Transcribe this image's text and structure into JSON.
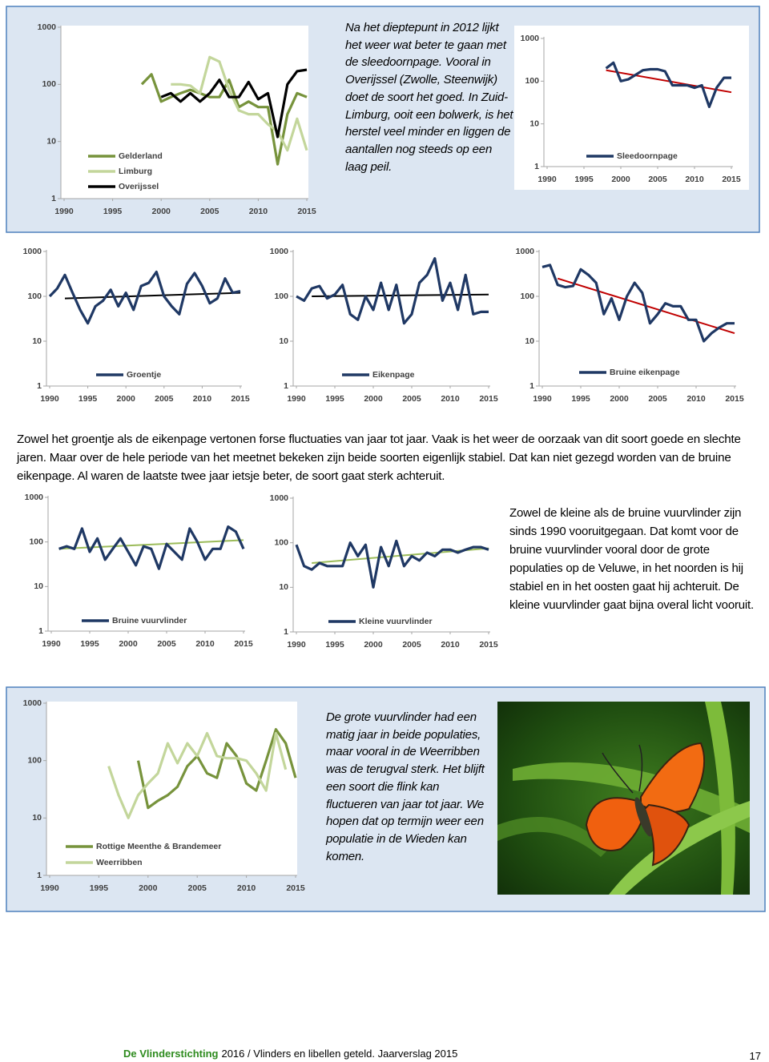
{
  "chart_data": [
    {
      "type": "line",
      "log_scale": true,
      "xlim": [
        1990,
        2015
      ],
      "ylim": [
        1,
        1000
      ],
      "xticks": [
        1990,
        1995,
        2000,
        2005,
        2010,
        2015
      ],
      "yticks": [
        1,
        10,
        100,
        1000
      ],
      "x": [
        1990,
        1991,
        1992,
        1993,
        1994,
        1995,
        1996,
        1997,
        1998,
        1999,
        2000,
        2001,
        2002,
        2003,
        2004,
        2005,
        2006,
        2007,
        2008,
        2009,
        2010,
        2011,
        2012,
        2013,
        2014,
        2015
      ],
      "series": [
        {
          "name": "Gelderland",
          "color": "#77933c",
          "values": [
            null,
            null,
            null,
            null,
            null,
            null,
            null,
            null,
            100,
            150,
            50,
            60,
            70,
            80,
            70,
            60,
            60,
            120,
            40,
            50,
            40,
            40,
            4,
            30,
            70,
            60
          ]
        },
        {
          "name": "Limburg",
          "color": "#c3d69b",
          "values": [
            null,
            null,
            null,
            null,
            null,
            null,
            null,
            null,
            null,
            null,
            null,
            100,
            100,
            95,
            70,
            300,
            250,
            80,
            35,
            30,
            30,
            20,
            15,
            7,
            25,
            7
          ]
        },
        {
          "name": "Overijssel",
          "color": "#000000",
          "values": [
            null,
            null,
            null,
            null,
            null,
            null,
            null,
            null,
            null,
            null,
            60,
            70,
            50,
            70,
            50,
            70,
            120,
            60,
            60,
            110,
            55,
            70,
            12,
            100,
            170,
            180
          ]
        }
      ]
    },
    {
      "type": "line",
      "log_scale": true,
      "xlim": [
        1990,
        2015
      ],
      "ylim": [
        1,
        1000
      ],
      "xticks": [
        1990,
        1995,
        2000,
        2005,
        2010,
        2015
      ],
      "yticks": [
        1,
        10,
        100,
        1000
      ],
      "x": [
        1990,
        1991,
        1992,
        1993,
        1994,
        1995,
        1996,
        1997,
        1998,
        1999,
        2000,
        2001,
        2002,
        2003,
        2004,
        2005,
        2006,
        2007,
        2008,
        2009,
        2010,
        2011,
        2012,
        2013,
        2014,
        2015
      ],
      "series": [
        {
          "name": "Sleedoornpage",
          "color": "#1f3864",
          "values": [
            null,
            null,
            null,
            null,
            null,
            null,
            null,
            null,
            200,
            270,
            100,
            110,
            140,
            180,
            190,
            190,
            170,
            80,
            80,
            80,
            70,
            80,
            25,
            70,
            120,
            120
          ]
        }
      ],
      "trend": {
        "x": [
          1998,
          2015
        ],
        "values": [
          180,
          55
        ],
        "color": "#c00000"
      }
    },
    {
      "type": "line",
      "log_scale": true,
      "xlim": [
        1990,
        2015
      ],
      "ylim": [
        1,
        1000
      ],
      "xticks": [
        1990,
        1995,
        2000,
        2005,
        2010,
        2015
      ],
      "yticks": [
        1,
        10,
        100,
        1000
      ],
      "x": [
        1990,
        1991,
        1992,
        1993,
        1994,
        1995,
        1996,
        1997,
        1998,
        1999,
        2000,
        2001,
        2002,
        2003,
        2004,
        2005,
        2006,
        2007,
        2008,
        2009,
        2010,
        2011,
        2012,
        2013,
        2014,
        2015
      ],
      "series": [
        {
          "name": "Groentje",
          "color": "#1f3864",
          "values": [
            100,
            150,
            300,
            120,
            50,
            25,
            60,
            80,
            140,
            60,
            120,
            50,
            170,
            200,
            350,
            100,
            60,
            40,
            190,
            330,
            170,
            70,
            90,
            250,
            120,
            130
          ]
        }
      ],
      "trend": {
        "x": [
          1992,
          2015
        ],
        "values": [
          90,
          120
        ],
        "color": "#000000"
      }
    },
    {
      "type": "line",
      "log_scale": true,
      "xlim": [
        1990,
        2015
      ],
      "ylim": [
        1,
        1000
      ],
      "xticks": [
        1990,
        1995,
        2000,
        2005,
        2010,
        2015
      ],
      "yticks": [
        1,
        10,
        100,
        1000
      ],
      "x": [
        1990,
        1991,
        1992,
        1993,
        1994,
        1995,
        1996,
        1997,
        1998,
        1999,
        2000,
        2001,
        2002,
        2003,
        2004,
        2005,
        2006,
        2007,
        2008,
        2009,
        2010,
        2011,
        2012,
        2013,
        2014,
        2015
      ],
      "series": [
        {
          "name": "Eikenpage",
          "color": "#1f3864",
          "values": [
            100,
            80,
            150,
            170,
            90,
            110,
            180,
            40,
            30,
            100,
            50,
            200,
            50,
            180,
            25,
            40,
            200,
            300,
            700,
            80,
            200,
            50,
            300,
            40,
            45,
            45
          ]
        }
      ],
      "trend": {
        "x": [
          1992,
          2015
        ],
        "values": [
          100,
          110
        ],
        "color": "#000000"
      }
    },
    {
      "type": "line",
      "log_scale": true,
      "xlim": [
        1990,
        2015
      ],
      "ylim": [
        1,
        1000
      ],
      "xticks": [
        1990,
        1995,
        2000,
        2005,
        2010,
        2015
      ],
      "yticks": [
        1,
        10,
        100,
        1000
      ],
      "x": [
        1990,
        1991,
        1992,
        1993,
        1994,
        1995,
        1996,
        1997,
        1998,
        1999,
        2000,
        2001,
        2002,
        2003,
        2004,
        2005,
        2006,
        2007,
        2008,
        2009,
        2010,
        2011,
        2012,
        2013,
        2014,
        2015
      ],
      "series": [
        {
          "name": "Bruine eikenpage",
          "color": "#1f3864",
          "values": [
            450,
            500,
            180,
            160,
            170,
            400,
            300,
            200,
            40,
            90,
            30,
            100,
            200,
            120,
            25,
            40,
            70,
            60,
            60,
            30,
            30,
            10,
            15,
            20,
            25,
            25
          ]
        }
      ],
      "trend": {
        "x": [
          1992,
          2015
        ],
        "values": [
          250,
          15
        ],
        "color": "#c00000"
      }
    },
    {
      "type": "line",
      "log_scale": true,
      "xlim": [
        1990,
        2015
      ],
      "ylim": [
        1,
        1000
      ],
      "xticks": [
        1990,
        1995,
        2000,
        2005,
        2010,
        2015
      ],
      "yticks": [
        1,
        10,
        100,
        1000
      ],
      "x": [
        1990,
        1991,
        1992,
        1993,
        1994,
        1995,
        1996,
        1997,
        1998,
        1999,
        2000,
        2001,
        2002,
        2003,
        2004,
        2005,
        2006,
        2007,
        2008,
        2009,
        2010,
        2011,
        2012,
        2013,
        2014,
        2015
      ],
      "series": [
        {
          "name": "Bruine vuurvlinder",
          "color": "#1f3864",
          "values": [
            null,
            70,
            80,
            70,
            200,
            60,
            120,
            40,
            70,
            120,
            60,
            30,
            80,
            70,
            25,
            90,
            60,
            40,
            200,
            100,
            40,
            70,
            70,
            220,
            170,
            70
          ]
        }
      ],
      "trend": {
        "x": [
          1991,
          2015
        ],
        "values": [
          70,
          110
        ],
        "color": "#9bbb59"
      }
    },
    {
      "type": "line",
      "log_scale": true,
      "xlim": [
        1990,
        2015
      ],
      "ylim": [
        1,
        1000
      ],
      "xticks": [
        1990,
        1995,
        2000,
        2005,
        2010,
        2015
      ],
      "yticks": [
        1,
        10,
        100,
        1000
      ],
      "x": [
        1990,
        1991,
        1992,
        1993,
        1994,
        1995,
        1996,
        1997,
        1998,
        1999,
        2000,
        2001,
        2002,
        2003,
        2004,
        2005,
        2006,
        2007,
        2008,
        2009,
        2010,
        2011,
        2012,
        2013,
        2014,
        2015
      ],
      "series": [
        {
          "name": "Kleine vuurvlinder",
          "color": "#1f3864",
          "values": [
            90,
            30,
            25,
            35,
            30,
            30,
            30,
            100,
            50,
            90,
            10,
            80,
            30,
            110,
            30,
            50,
            40,
            60,
            50,
            70,
            70,
            60,
            70,
            80,
            80,
            70
          ]
        }
      ],
      "trend": {
        "x": [
          1992,
          2015
        ],
        "values": [
          35,
          75
        ],
        "color": "#9bbb59"
      }
    },
    {
      "type": "line",
      "log_scale": true,
      "xlim": [
        1990,
        2015
      ],
      "ylim": [
        1,
        1000
      ],
      "xticks": [
        1990,
        1995,
        2000,
        2005,
        2010,
        2015
      ],
      "yticks": [
        1,
        10,
        100,
        1000
      ],
      "x": [
        1990,
        1991,
        1992,
        1993,
        1994,
        1995,
        1996,
        1997,
        1998,
        1999,
        2000,
        2001,
        2002,
        2003,
        2004,
        2005,
        2006,
        2007,
        2008,
        2009,
        2010,
        2011,
        2012,
        2013,
        2014,
        2015
      ],
      "series": [
        {
          "name": "Rottige Meenthe & Brandemeer",
          "color": "#77933c",
          "values": [
            null,
            null,
            null,
            null,
            null,
            null,
            null,
            null,
            null,
            100,
            15,
            20,
            25,
            35,
            80,
            120,
            60,
            50,
            200,
            120,
            40,
            30,
            100,
            350,
            200,
            50
          ]
        },
        {
          "name": "Weerribben",
          "color": "#c3d69b",
          "values": [
            null,
            null,
            null,
            null,
            null,
            null,
            80,
            25,
            10,
            25,
            40,
            60,
            200,
            90,
            200,
            120,
            300,
            120,
            110,
            110,
            100,
            60,
            30,
            300,
            70,
            null
          ]
        }
      ]
    }
  ],
  "paragraphs": [
    "Na het dieptepunt in 2012 lijkt het weer wat beter te gaan met de sleedoornpage. Vooral in Overijssel (Zwolle, Steenwijk) doet de soort het goed. In Zuid-Limburg, ooit een bolwerk, is het herstel veel minder en liggen de aantallen nog steeds op een laag peil.",
    "Zowel het groentje als de eikenpage vertonen forse fluctuaties van jaar tot jaar. Vaak is het weer de oorzaak van dit soort goede en slechte jaren. Maar over de hele periode van het meetnet bekeken zijn beide soorten eigenlijk stabiel. Dat kan niet gezegd worden van de bruine eikenpage. Al waren de laatste twee jaar ietsje beter, de soort gaat sterk achteruit.",
    "Zowel de kleine als de bruine vuurvlinder zijn sinds 1990 vooruitgegaan. Dat komt voor de bruine vuurvlinder vooral door de grote populaties op de Veluwe, in het noorden is hij stabiel en in het oosten gaat hij achteruit. De kleine vuurvlinder gaat bijna overal licht vooruit.",
    "De grote vuurvlinder had een matig jaar in beide populaties, maar vooral in de Weerribben was de terugval sterk. Het blijft een soort die flink kan fluctueren van jaar tot jaar. We hopen dat op termijn weer een populatie in de Wieden kan komen."
  ],
  "footer": {
    "organization": "De Vlinderstichting",
    "text": "2016 / Vlinders en libellen geteld. Jaarverslag 2015",
    "page": "17"
  }
}
